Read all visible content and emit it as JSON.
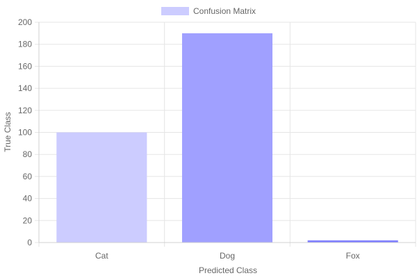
{
  "chart_data": {
    "type": "bar",
    "legend": {
      "position": "top",
      "label": "Confusion Matrix",
      "color": "#ccccff"
    },
    "categories": [
      "Cat",
      "Dog",
      "Fox"
    ],
    "series": [
      {
        "name": "Confusion Matrix",
        "values": [
          100,
          190,
          2
        ],
        "colors": [
          "#ccccff",
          "#a0a0ff",
          "#8080ff"
        ]
      }
    ],
    "xlabel": "Predicted Class",
    "ylabel": "True Class",
    "ylim": [
      0,
      200
    ],
    "yticks": [
      "0",
      "20",
      "40",
      "60",
      "80",
      "100",
      "120",
      "140",
      "160",
      "180",
      "200"
    ],
    "grid": true
  }
}
